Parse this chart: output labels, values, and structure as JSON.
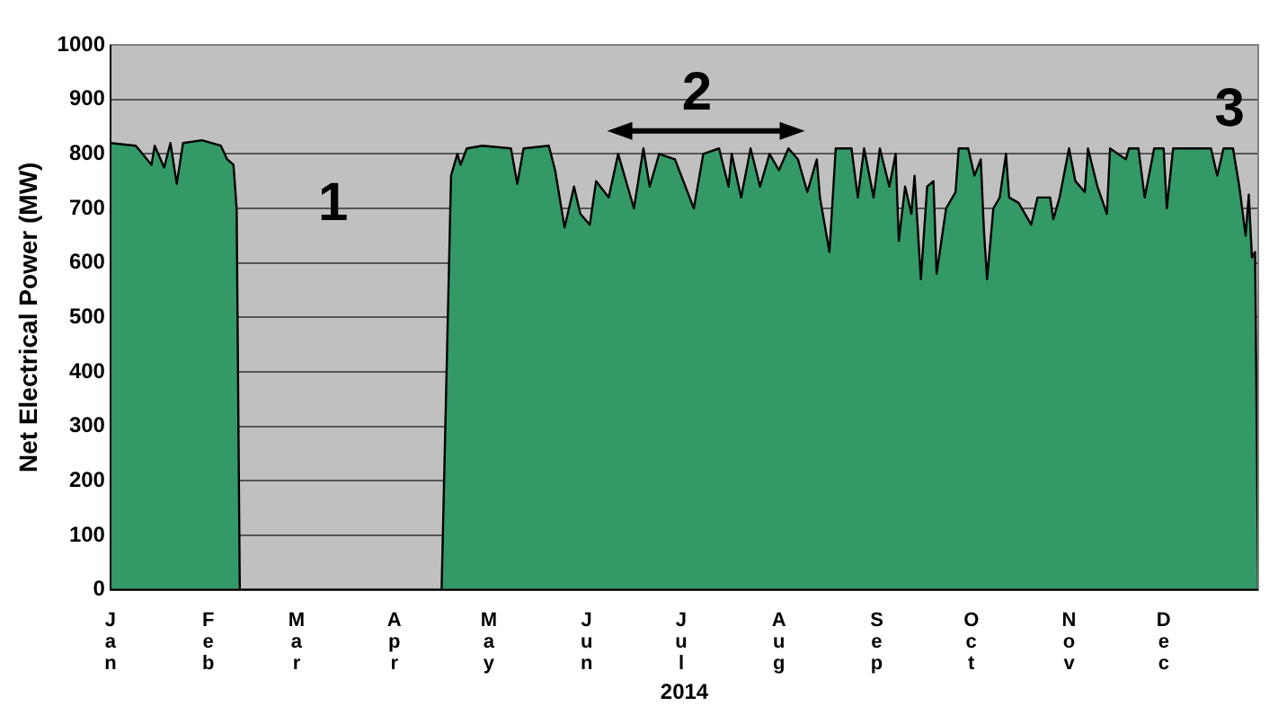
{
  "chart_data": {
    "type": "area",
    "xlabel": "2014",
    "ylabel": "Net Electrical Power (MW)",
    "x": [
      "2014-01-01",
      "2014-01-09",
      "2014-01-14",
      "2014-01-15",
      "2014-01-18",
      "2014-01-20",
      "2014-01-22",
      "2014-01-24",
      "2014-01-30",
      "2014-02-05",
      "2014-02-07",
      "2014-02-09",
      "2014-02-10",
      "2014-02-11",
      "2014-04-15",
      "2014-04-16",
      "2014-04-19",
      "2014-04-21",
      "2014-04-22",
      "2014-04-24",
      "2014-04-29",
      "2014-05-08",
      "2014-05-10",
      "2014-05-12",
      "2014-05-20",
      "2014-05-22",
      "2014-05-25",
      "2014-05-28",
      "2014-05-30",
      "2014-06-02",
      "2014-06-04",
      "2014-06-08",
      "2014-06-11",
      "2014-06-16",
      "2014-06-19",
      "2014-06-21",
      "2014-06-24",
      "2014-06-29",
      "2014-07-05",
      "2014-07-08",
      "2014-07-13",
      "2014-07-16",
      "2014-07-17",
      "2014-07-20",
      "2014-07-23",
      "2014-07-26",
      "2014-07-29",
      "2014-08-01",
      "2014-08-04",
      "2014-08-07",
      "2014-08-10",
      "2014-08-13",
      "2014-08-14",
      "2014-08-17",
      "2014-08-19",
      "2014-08-24",
      "2014-08-26",
      "2014-08-28",
      "2014-08-31",
      "2014-09-02",
      "2014-09-05",
      "2014-09-07",
      "2014-09-08",
      "2014-09-10",
      "2014-09-12",
      "2014-09-13",
      "2014-09-15",
      "2014-09-17",
      "2014-09-19",
      "2014-09-20",
      "2014-09-23",
      "2014-09-26",
      "2014-09-27",
      "2014-09-30",
      "2014-10-02",
      "2014-10-04",
      "2014-10-05",
      "2014-10-06",
      "2014-10-08",
      "2014-10-10",
      "2014-10-12",
      "2014-10-13",
      "2014-10-16",
      "2014-10-20",
      "2014-10-22",
      "2014-10-26",
      "2014-10-27",
      "2014-10-29",
      "2014-11-01",
      "2014-11-03",
      "2014-11-06",
      "2014-11-07",
      "2014-11-10",
      "2014-11-13",
      "2014-11-14",
      "2014-11-19",
      "2014-11-20",
      "2014-11-23",
      "2014-11-25",
      "2014-11-28",
      "2014-12-01",
      "2014-12-02",
      "2014-12-04",
      "2014-12-16",
      "2014-12-18",
      "2014-12-20",
      "2014-12-23",
      "2014-12-25",
      "2014-12-27",
      "2014-12-28",
      "2014-12-29",
      "2014-12-30",
      "2014-12-31"
    ],
    "series": [
      {
        "color": "#339966",
        "values": [
          820,
          815,
          780,
          815,
          775,
          820,
          745,
          820,
          825,
          815,
          790,
          780,
          700,
          0,
          0,
          0,
          760,
          800,
          780,
          810,
          815,
          810,
          745,
          810,
          815,
          770,
          665,
          740,
          690,
          670,
          750,
          720,
          800,
          700,
          810,
          740,
          800,
          790,
          700,
          800,
          810,
          740,
          800,
          720,
          810,
          740,
          800,
          770,
          810,
          790,
          730,
          790,
          720,
          620,
          810,
          810,
          720,
          810,
          720,
          810,
          740,
          800,
          640,
          740,
          690,
          760,
          570,
          740,
          750,
          580,
          700,
          730,
          810,
          810,
          760,
          790,
          660,
          570,
          700,
          720,
          800,
          720,
          710,
          670,
          720,
          720,
          680,
          720,
          810,
          750,
          730,
          810,
          740,
          690,
          810,
          790,
          810,
          810,
          720,
          810,
          810,
          700,
          810,
          810,
          760,
          810,
          810,
          740,
          650,
          725,
          610,
          620,
          0
        ]
      }
    ],
    "xlim": [
      "2014-01-01",
      "2014-12-31"
    ],
    "xticks": [
      {
        "value": "2014-01-01",
        "label": "Jan"
      },
      {
        "value": "2014-02-01",
        "label": "Feb"
      },
      {
        "value": "2014-03-01",
        "label": "Mar"
      },
      {
        "value": "2014-04-01",
        "label": "Apr"
      },
      {
        "value": "2014-05-01",
        "label": "May"
      },
      {
        "value": "2014-06-01",
        "label": "Jun"
      },
      {
        "value": "2014-07-01",
        "label": "Jul"
      },
      {
        "value": "2014-08-01",
        "label": "Aug"
      },
      {
        "value": "2014-09-01",
        "label": "Sep"
      },
      {
        "value": "2014-10-01",
        "label": "Oct"
      },
      {
        "value": "2014-11-01",
        "label": "Nov"
      },
      {
        "value": "2014-12-01",
        "label": "Dec"
      }
    ],
    "ylim": [
      0,
      1000
    ],
    "yticks": [
      0,
      100,
      200,
      300,
      400,
      500,
      600,
      700,
      800,
      900,
      1000
    ],
    "grid": "y",
    "legend": false,
    "annotations": [
      "1",
      "2",
      "3"
    ]
  }
}
